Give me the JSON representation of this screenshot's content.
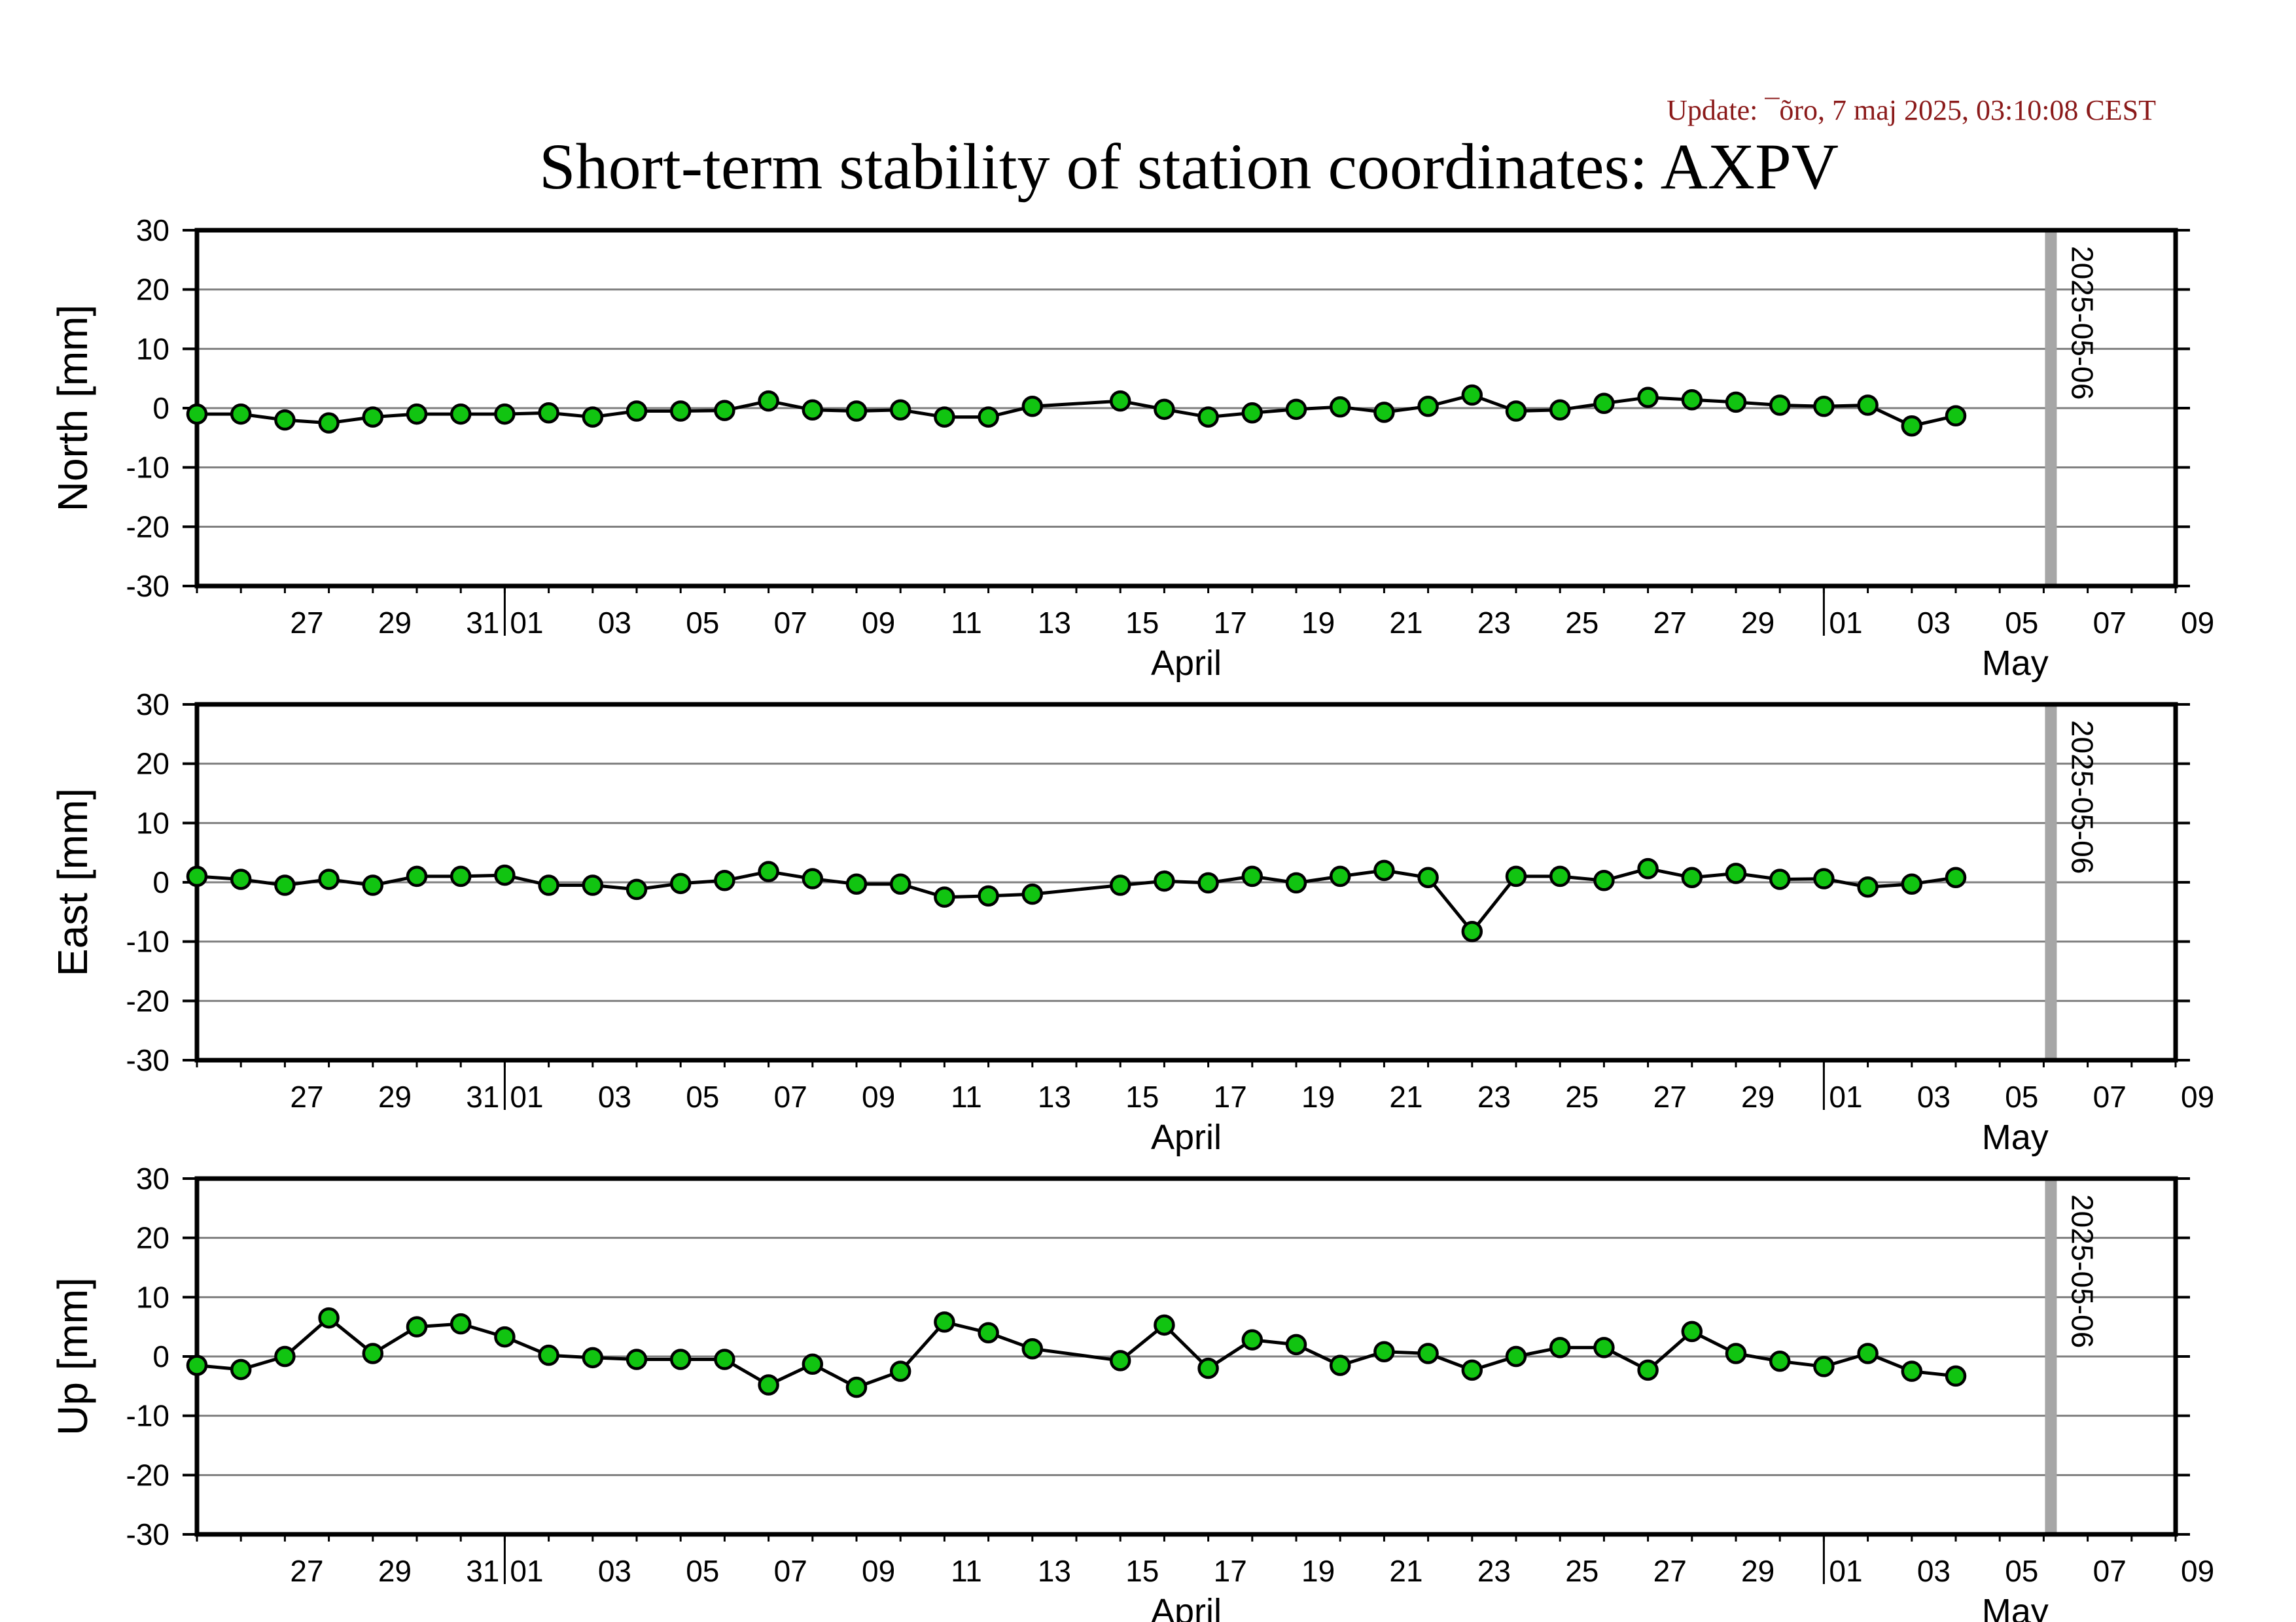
{
  "update_text": "Update: ¯õro, 7 maj 2025, 03:10:08 CEST",
  "title": "Short-term stability of station coordinates: AXPV",
  "marker_label": "2025-05-06",
  "colors": {
    "point_fill": "#11c411",
    "point_stroke": "#000000",
    "line": "#000000",
    "grid": "#7f7f7f",
    "marker_bar": "#a6a6a6",
    "update_text": "#8b1a1a",
    "frame": "#000000"
  },
  "chart_data": [
    {
      "type": "line",
      "ylabel": "North [mm]",
      "ylim": [
        -30,
        30
      ],
      "yticks": [
        -30,
        -20,
        -10,
        0,
        10,
        20,
        30
      ],
      "x_range": [
        "2025-03-25",
        "2025-05-09"
      ],
      "grid": true,
      "x_tick_labels": [
        "27",
        "29",
        "31",
        "01",
        "03",
        "05",
        "07",
        "09",
        "11",
        "13",
        "15",
        "17",
        "19",
        "21",
        "23",
        "25",
        "27",
        "29",
        "01",
        "03",
        "05",
        "07",
        "09"
      ],
      "month_labels": [
        "April",
        "May"
      ],
      "marker_date": "2025-05-06",
      "x": [
        "2025-03-25",
        "2025-03-26",
        "2025-03-27",
        "2025-03-28",
        "2025-03-29",
        "2025-03-30",
        "2025-03-31",
        "2025-04-01",
        "2025-04-02",
        "2025-04-03",
        "2025-04-04",
        "2025-04-05",
        "2025-04-06",
        "2025-04-07",
        "2025-04-08",
        "2025-04-09",
        "2025-04-10",
        "2025-04-11",
        "2025-04-12",
        "2025-04-13",
        "2025-04-15",
        "2025-04-16",
        "2025-04-17",
        "2025-04-18",
        "2025-04-19",
        "2025-04-20",
        "2025-04-21",
        "2025-04-22",
        "2025-04-23",
        "2025-04-24",
        "2025-04-25",
        "2025-04-26",
        "2025-04-27",
        "2025-04-28",
        "2025-04-29",
        "2025-04-30",
        "2025-05-01",
        "2025-05-02",
        "2025-05-03",
        "2025-05-04"
      ],
      "values": [
        -1,
        -1,
        -2,
        -2.5,
        -1.5,
        -1,
        -1,
        -1,
        -0.8,
        -1.5,
        -0.5,
        -0.5,
        -0.4,
        1.2,
        -0.3,
        -0.5,
        -0.3,
        -1.5,
        -1.5,
        0.3,
        1.2,
        -0.2,
        -1.5,
        -0.8,
        -0.2,
        0.2,
        -0.7,
        0.3,
        2.2,
        -0.5,
        -0.3,
        0.8,
        1.8,
        1.4,
        1,
        0.5,
        0.3,
        0.5,
        -3,
        -1.3
      ]
    },
    {
      "type": "line",
      "ylabel": "East [mm]",
      "ylim": [
        -30,
        30
      ],
      "yticks": [
        -30,
        -20,
        -10,
        0,
        10,
        20,
        30
      ],
      "x_range": [
        "2025-03-25",
        "2025-05-09"
      ],
      "grid": true,
      "x_tick_labels": [
        "27",
        "29",
        "31",
        "01",
        "03",
        "05",
        "07",
        "09",
        "11",
        "13",
        "15",
        "17",
        "19",
        "21",
        "23",
        "25",
        "27",
        "29",
        "01",
        "03",
        "05",
        "07",
        "09"
      ],
      "month_labels": [
        "April",
        "May"
      ],
      "marker_date": "2025-05-06",
      "x": [
        "2025-03-25",
        "2025-03-26",
        "2025-03-27",
        "2025-03-28",
        "2025-03-29",
        "2025-03-30",
        "2025-03-31",
        "2025-04-01",
        "2025-04-02",
        "2025-04-03",
        "2025-04-04",
        "2025-04-05",
        "2025-04-06",
        "2025-04-07",
        "2025-04-08",
        "2025-04-09",
        "2025-04-10",
        "2025-04-11",
        "2025-04-12",
        "2025-04-13",
        "2025-04-15",
        "2025-04-16",
        "2025-04-17",
        "2025-04-18",
        "2025-04-19",
        "2025-04-20",
        "2025-04-21",
        "2025-04-22",
        "2025-04-23",
        "2025-04-24",
        "2025-04-25",
        "2025-04-26",
        "2025-04-27",
        "2025-04-28",
        "2025-04-29",
        "2025-04-30",
        "2025-05-01",
        "2025-05-02",
        "2025-05-03",
        "2025-05-04"
      ],
      "values": [
        1,
        0.5,
        -0.5,
        0.5,
        -0.5,
        1,
        1,
        1.2,
        -0.5,
        -0.5,
        -1.2,
        -0.2,
        0.3,
        1.8,
        0.6,
        -0.3,
        -0.3,
        -2.5,
        -2.3,
        -2,
        -0.5,
        0.2,
        -0.1,
        1,
        -0.1,
        1,
        2,
        0.8,
        -8.3,
        1,
        1,
        0.3,
        2.3,
        0.8,
        1.5,
        0.5,
        0.6,
        -0.8,
        -0.3,
        0.8
      ]
    },
    {
      "type": "line",
      "ylabel": "Up [mm]",
      "ylim": [
        -30,
        30
      ],
      "yticks": [
        -30,
        -20,
        -10,
        0,
        10,
        20,
        30
      ],
      "x_range": [
        "2025-03-25",
        "2025-05-09"
      ],
      "grid": true,
      "x_tick_labels": [
        "27",
        "29",
        "31",
        "01",
        "03",
        "05",
        "07",
        "09",
        "11",
        "13",
        "15",
        "17",
        "19",
        "21",
        "23",
        "25",
        "27",
        "29",
        "01",
        "03",
        "05",
        "07",
        "09"
      ],
      "month_labels": [
        "April",
        "May"
      ],
      "marker_date": "2025-05-06",
      "x": [
        "2025-03-25",
        "2025-03-26",
        "2025-03-27",
        "2025-03-28",
        "2025-03-29",
        "2025-03-30",
        "2025-03-31",
        "2025-04-01",
        "2025-04-02",
        "2025-04-03",
        "2025-04-04",
        "2025-04-05",
        "2025-04-06",
        "2025-04-07",
        "2025-04-08",
        "2025-04-09",
        "2025-04-10",
        "2025-04-11",
        "2025-04-12",
        "2025-04-13",
        "2025-04-15",
        "2025-04-16",
        "2025-04-17",
        "2025-04-18",
        "2025-04-19",
        "2025-04-20",
        "2025-04-21",
        "2025-04-22",
        "2025-04-23",
        "2025-04-24",
        "2025-04-25",
        "2025-04-26",
        "2025-04-27",
        "2025-04-28",
        "2025-04-29",
        "2025-04-30",
        "2025-05-01",
        "2025-05-02",
        "2025-05-03",
        "2025-05-04"
      ],
      "values": [
        -1.5,
        -2.2,
        0,
        6.5,
        0.5,
        5,
        5.5,
        3.3,
        0.2,
        -0.2,
        -0.5,
        -0.5,
        -0.5,
        -4.8,
        -1.3,
        -5.2,
        -2.5,
        5.8,
        4,
        1.3,
        -0.7,
        5.3,
        -2,
        2.8,
        2,
        -1.5,
        0.8,
        0.5,
        -2.3,
        0,
        1.5,
        1.5,
        -2.3,
        4.2,
        0.5,
        -0.8,
        -1.7,
        0.5,
        -2.5,
        -3.3
      ]
    }
  ]
}
